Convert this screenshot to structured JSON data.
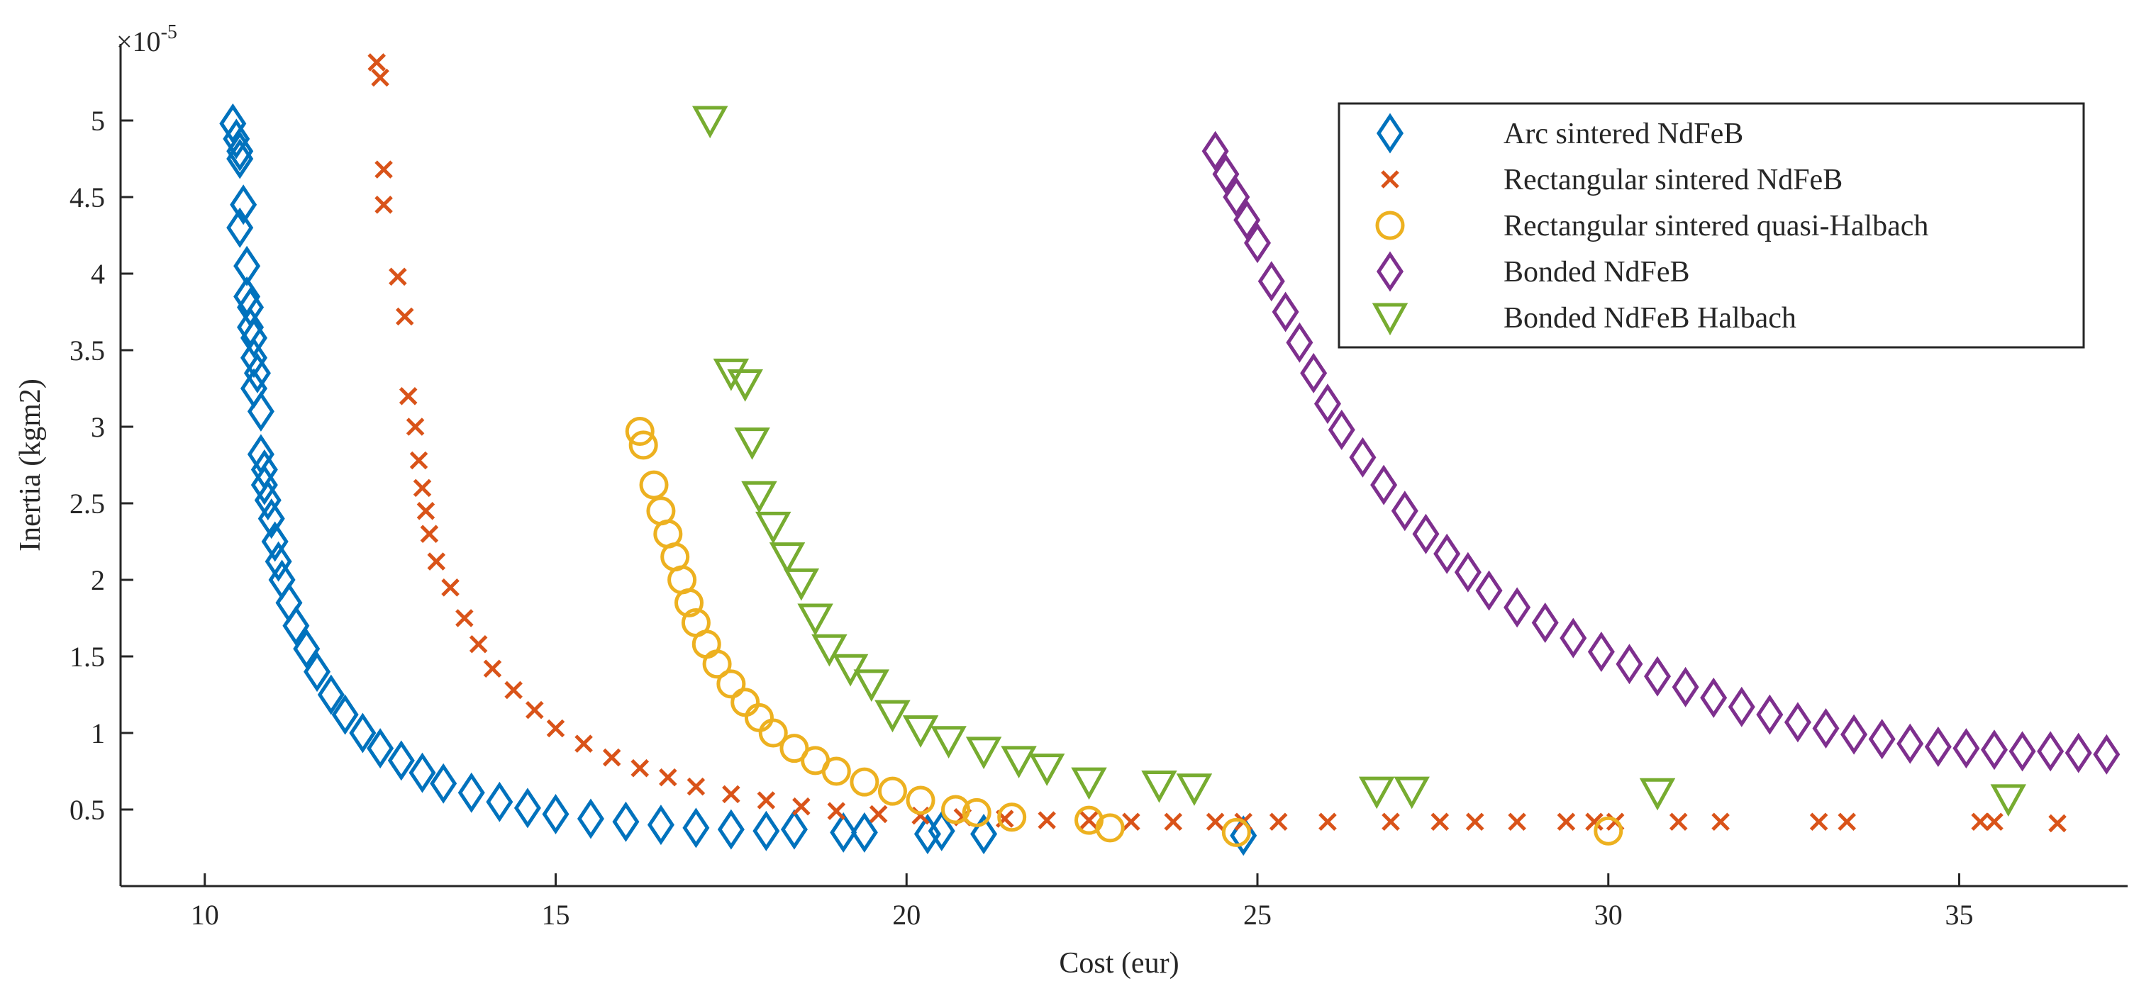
{
  "chart_data": {
    "type": "scatter",
    "xlabel": "Cost (eur)",
    "ylabel": "Inertia (kgm2)",
    "y_multiplier": "×10",
    "y_multiplier_exp": "-5",
    "xlim": [
      8.8,
      37.4
    ],
    "ylim": [
      0,
      5.5
    ],
    "xticks": [
      10,
      15,
      20,
      25,
      30,
      35
    ],
    "yticks": [
      0.5,
      1,
      1.5,
      2,
      2.5,
      3,
      3.5,
      4,
      4.5,
      5
    ],
    "ytick_labels": [
      "0.5",
      "1",
      "1.5",
      "2",
      "2.5",
      "3",
      "3.5",
      "4",
      "4.5",
      "5"
    ],
    "legend_position": "top-right",
    "series": [
      {
        "name": "Arc sintered NdFeB",
        "marker": "diamond",
        "color": "#0072BD",
        "x": [
          10.4,
          10.45,
          10.5,
          10.5,
          10.55,
          10.5,
          10.6,
          10.6,
          10.65,
          10.65,
          10.7,
          10.7,
          10.75,
          10.7,
          10.8,
          10.8,
          10.85,
          10.85,
          10.9,
          10.95,
          11.0,
          11.05,
          11.1,
          11.2,
          11.3,
          11.45,
          11.6,
          11.8,
          12.0,
          12.25,
          12.5,
          12.8,
          13.1,
          13.4,
          13.8,
          14.2,
          14.6,
          15.0,
          15.5,
          16.0,
          16.5,
          17.0,
          17.5,
          18.0,
          18.4,
          19.1,
          19.4,
          20.3,
          20.5,
          21.1,
          24.8
        ],
        "y": [
          4.98,
          4.88,
          4.8,
          4.75,
          4.45,
          4.3,
          4.05,
          3.85,
          3.78,
          3.65,
          3.58,
          3.45,
          3.35,
          3.25,
          3.1,
          2.82,
          2.72,
          2.62,
          2.52,
          2.4,
          2.25,
          2.12,
          2.0,
          1.85,
          1.7,
          1.55,
          1.4,
          1.25,
          1.12,
          1.0,
          0.9,
          0.82,
          0.74,
          0.67,
          0.61,
          0.55,
          0.51,
          0.47,
          0.44,
          0.42,
          0.4,
          0.38,
          0.37,
          0.36,
          0.37,
          0.35,
          0.35,
          0.34,
          0.36,
          0.34,
          0.33
        ]
      },
      {
        "name": "Rectangular sintered NdFeB",
        "marker": "x",
        "color": "#D95319",
        "x": [
          12.45,
          12.5,
          12.55,
          12.55,
          12.75,
          12.85,
          12.9,
          13.0,
          13.05,
          13.1,
          13.15,
          13.2,
          13.3,
          13.5,
          13.7,
          13.9,
          14.1,
          14.4,
          14.7,
          15.0,
          15.4,
          15.8,
          16.2,
          16.6,
          17.0,
          17.5,
          18.0,
          18.5,
          19.0,
          19.6,
          20.2,
          20.8,
          21.4,
          22.0,
          22.6,
          23.2,
          23.8,
          24.4,
          24.8,
          25.3,
          26.0,
          26.9,
          27.6,
          28.1,
          28.7,
          29.4,
          29.8,
          30.1,
          31.0,
          31.6,
          33.0,
          33.4,
          35.3,
          35.5,
          36.4
        ],
        "y": [
          5.38,
          5.28,
          4.68,
          4.45,
          3.98,
          3.72,
          3.2,
          3.0,
          2.78,
          2.6,
          2.45,
          2.3,
          2.12,
          1.95,
          1.75,
          1.58,
          1.42,
          1.28,
          1.15,
          1.03,
          0.93,
          0.84,
          0.77,
          0.71,
          0.65,
          0.6,
          0.56,
          0.52,
          0.49,
          0.47,
          0.46,
          0.45,
          0.44,
          0.43,
          0.43,
          0.42,
          0.42,
          0.42,
          0.42,
          0.42,
          0.42,
          0.42,
          0.42,
          0.42,
          0.42,
          0.42,
          0.42,
          0.42,
          0.42,
          0.42,
          0.42,
          0.42,
          0.42,
          0.42,
          0.41
        ]
      },
      {
        "name": "Rectangular sintered quasi-Halbach",
        "marker": "circle",
        "color": "#EDB120",
        "x": [
          16.2,
          16.25,
          16.4,
          16.5,
          16.6,
          16.7,
          16.8,
          16.9,
          17.0,
          17.15,
          17.3,
          17.5,
          17.7,
          17.9,
          18.1,
          18.4,
          18.7,
          19.0,
          19.4,
          19.8,
          20.2,
          20.7,
          21.0,
          21.5,
          22.6,
          22.9,
          24.7,
          30.0
        ],
        "y": [
          2.97,
          2.88,
          2.62,
          2.45,
          2.3,
          2.15,
          2.0,
          1.85,
          1.72,
          1.58,
          1.45,
          1.32,
          1.2,
          1.1,
          1.0,
          0.9,
          0.82,
          0.75,
          0.68,
          0.62,
          0.56,
          0.5,
          0.48,
          0.45,
          0.43,
          0.38,
          0.35,
          0.36
        ]
      },
      {
        "name": "Bonded NdFeB",
        "marker": "diamond",
        "color": "#7E2F8E",
        "x": [
          24.4,
          24.55,
          24.7,
          24.85,
          25.0,
          25.2,
          25.4,
          25.6,
          25.8,
          26.0,
          26.2,
          26.5,
          26.8,
          27.1,
          27.4,
          27.7,
          28.0,
          28.3,
          28.7,
          29.1,
          29.5,
          29.9,
          30.3,
          30.7,
          31.1,
          31.5,
          31.9,
          32.3,
          32.7,
          33.1,
          33.5,
          33.9,
          34.3,
          34.7,
          35.1,
          35.5,
          35.9,
          36.3,
          36.7,
          37.1
        ],
        "y": [
          4.8,
          4.65,
          4.5,
          4.35,
          4.2,
          3.95,
          3.75,
          3.55,
          3.35,
          3.15,
          2.98,
          2.8,
          2.62,
          2.45,
          2.3,
          2.17,
          2.05,
          1.93,
          1.82,
          1.72,
          1.62,
          1.53,
          1.45,
          1.37,
          1.3,
          1.23,
          1.17,
          1.12,
          1.07,
          1.03,
          0.99,
          0.96,
          0.93,
          0.91,
          0.9,
          0.89,
          0.88,
          0.88,
          0.87,
          0.86
        ]
      },
      {
        "name": "Bonded NdFeB Halbach",
        "marker": "triangle-down",
        "color": "#77AC30",
        "x": [
          17.2,
          17.5,
          17.7,
          17.8,
          17.9,
          18.1,
          18.3,
          18.5,
          18.7,
          18.9,
          19.2,
          19.5,
          19.8,
          20.2,
          20.6,
          21.1,
          21.6,
          22.0,
          22.6,
          23.6,
          24.1,
          26.7,
          27.2,
          30.7,
          35.7
        ],
        "y": [
          5.0,
          3.35,
          3.28,
          2.9,
          2.55,
          2.35,
          2.15,
          1.98,
          1.75,
          1.55,
          1.42,
          1.32,
          1.12,
          1.02,
          0.95,
          0.88,
          0.82,
          0.77,
          0.68,
          0.66,
          0.64,
          0.62,
          0.62,
          0.61,
          0.57
        ]
      }
    ]
  }
}
